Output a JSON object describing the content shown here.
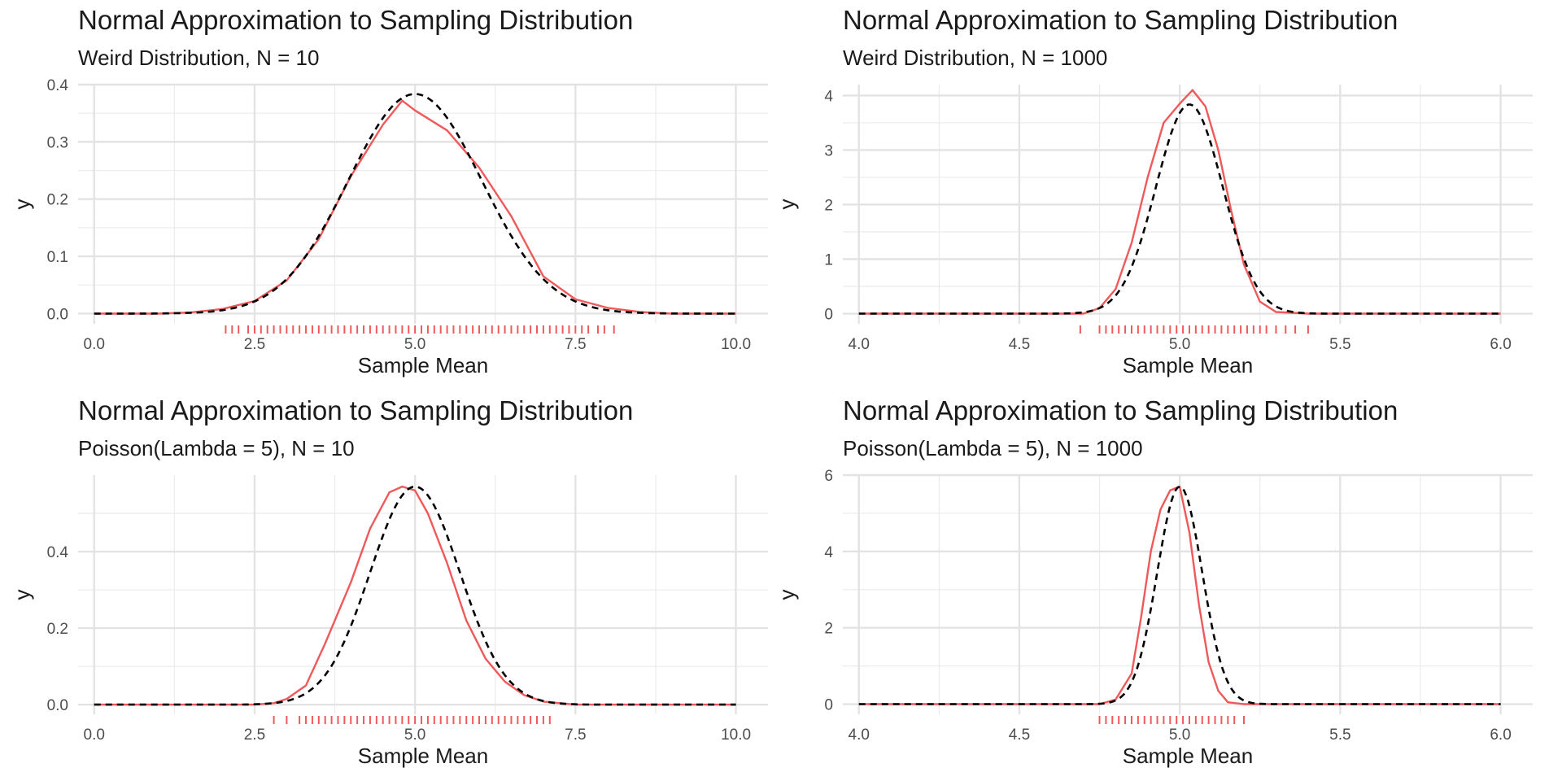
{
  "chart_data": [
    {
      "type": "line",
      "title": "Normal Approximation to Sampling Distribution",
      "subtitle": "Weird Distribution, N = 10",
      "xlabel": "Sample Mean",
      "ylabel": "y",
      "xlim": [
        -0.25,
        10.5
      ],
      "ylim": [
        -0.0178,
        0.4
      ],
      "xticks": [
        "0.0",
        "2.5",
        "5.0",
        "7.5",
        "10.0"
      ],
      "xtick_values": [
        0,
        2.5,
        5,
        7.5,
        10
      ],
      "yticks": [
        "0.0",
        "0.1",
        "0.2",
        "0.3",
        "0.4"
      ],
      "ytick_values": [
        0,
        0.1,
        0.2,
        0.3,
        0.4
      ],
      "grid": true,
      "series": [
        {
          "style": "solid",
          "color": "#f0595a",
          "x": [
            0,
            1,
            1.5,
            2,
            2.5,
            3,
            3.5,
            4,
            4.5,
            4.8,
            5,
            5.5,
            6,
            6.5,
            7,
            7.5,
            8,
            8.5,
            9,
            10
          ],
          "y": [
            0,
            0,
            0.002,
            0.008,
            0.022,
            0.058,
            0.13,
            0.24,
            0.33,
            0.372,
            0.355,
            0.32,
            0.255,
            0.17,
            0.065,
            0.025,
            0.01,
            0.003,
            0,
            0
          ]
        },
        {
          "style": "dashed",
          "color": "#000000",
          "mean": 5.0,
          "sd": 1.04,
          "x": [
            0,
            10
          ]
        }
      ],
      "rug": {
        "color": "#f0595a",
        "x": [
          2.05,
          2.15,
          2.25,
          2.4,
          2.5,
          2.6,
          2.7,
          2.8,
          2.9,
          3.0,
          3.1,
          3.2,
          3.3,
          3.4,
          3.5,
          3.6,
          3.7,
          3.8,
          3.9,
          4.0,
          4.1,
          4.2,
          4.3,
          4.4,
          4.5,
          4.6,
          4.7,
          4.8,
          4.9,
          5.0,
          5.1,
          5.2,
          5.3,
          5.4,
          5.5,
          5.6,
          5.7,
          5.8,
          5.9,
          6.0,
          6.1,
          6.2,
          6.3,
          6.4,
          6.5,
          6.6,
          6.7,
          6.8,
          6.9,
          7.0,
          7.1,
          7.2,
          7.3,
          7.4,
          7.5,
          7.6,
          7.7,
          7.85,
          7.95,
          8.1
        ]
      }
    },
    {
      "type": "line",
      "title": "Normal Approximation to Sampling Distribution",
      "subtitle": "Weird Distribution, N = 1000",
      "xlabel": "Sample Mean",
      "ylabel": "y",
      "xlim": [
        3.95,
        6.1
      ],
      "ylim": [
        -0.186,
        4.2
      ],
      "xticks": [
        "4.0",
        "4.5",
        "5.0",
        "5.5",
        "6.0"
      ],
      "xtick_values": [
        4,
        4.5,
        5,
        5.5,
        6
      ],
      "yticks": [
        "0",
        "1",
        "2",
        "3",
        "4"
      ],
      "ytick_values": [
        0,
        1,
        2,
        3,
        4
      ],
      "grid": true,
      "series": [
        {
          "style": "solid",
          "color": "#f0595a",
          "x": [
            4.0,
            4.7,
            4.75,
            4.8,
            4.85,
            4.9,
            4.95,
            5.0,
            5.04,
            5.08,
            5.12,
            5.16,
            5.2,
            5.25,
            5.3,
            5.4,
            6.0
          ],
          "y": [
            0,
            0,
            0.1,
            0.45,
            1.3,
            2.5,
            3.5,
            3.85,
            4.1,
            3.8,
            3.0,
            1.9,
            0.9,
            0.22,
            0.03,
            0,
            0
          ]
        },
        {
          "style": "dashed",
          "color": "#000000",
          "mean": 5.03,
          "sd": 0.104,
          "x": [
            4,
            6
          ]
        }
      ],
      "rug": {
        "color": "#f0595a",
        "x": [
          4.69,
          4.75,
          4.77,
          4.79,
          4.81,
          4.83,
          4.85,
          4.87,
          4.89,
          4.91,
          4.93,
          4.95,
          4.97,
          4.99,
          5.01,
          5.03,
          5.05,
          5.07,
          5.09,
          5.11,
          5.13,
          5.15,
          5.17,
          5.19,
          5.21,
          5.23,
          5.25,
          5.27,
          5.3,
          5.33,
          5.36,
          5.4
        ]
      }
    },
    {
      "type": "line",
      "title": "Normal Approximation to Sampling Distribution",
      "subtitle": "Poisson(Lambda = 5), N = 10",
      "xlabel": "Sample Mean",
      "ylabel": "y",
      "xlim": [
        -0.25,
        10.5
      ],
      "ylim": [
        -0.0252,
        0.6
      ],
      "xticks": [
        "0.0",
        "2.5",
        "5.0",
        "7.5",
        "10.0"
      ],
      "xtick_values": [
        0,
        2.5,
        5,
        7.5,
        10
      ],
      "yticks": [
        "0.0",
        "0.2",
        "0.4"
      ],
      "ytick_values": [
        0,
        0.2,
        0.4
      ],
      "grid": true,
      "series": [
        {
          "style": "solid",
          "color": "#f0595a",
          "x": [
            0,
            2.5,
            2.8,
            3.0,
            3.3,
            3.6,
            4.0,
            4.3,
            4.6,
            4.8,
            5.0,
            5.2,
            5.5,
            5.8,
            6.1,
            6.4,
            6.7,
            7.0,
            7.5,
            10
          ],
          "y": [
            0,
            0,
            0.004,
            0.015,
            0.05,
            0.16,
            0.32,
            0.46,
            0.555,
            0.57,
            0.56,
            0.5,
            0.37,
            0.22,
            0.12,
            0.06,
            0.025,
            0.008,
            0,
            0
          ]
        },
        {
          "style": "dashed",
          "color": "#000000",
          "mean": 5.0,
          "sd": 0.7,
          "x": [
            0,
            10
          ]
        }
      ],
      "rug": {
        "color": "#f0595a",
        "x": [
          2.8,
          3.0,
          3.2,
          3.3,
          3.4,
          3.5,
          3.6,
          3.7,
          3.8,
          3.9,
          4.0,
          4.1,
          4.2,
          4.3,
          4.4,
          4.5,
          4.6,
          4.7,
          4.8,
          4.9,
          5.0,
          5.1,
          5.2,
          5.3,
          5.4,
          5.5,
          5.6,
          5.7,
          5.8,
          5.9,
          6.0,
          6.1,
          6.2,
          6.3,
          6.4,
          6.5,
          6.6,
          6.7,
          6.8,
          6.9,
          7.0,
          7.1
        ]
      }
    },
    {
      "type": "line",
      "title": "Normal Approximation to Sampling Distribution",
      "subtitle": "Poisson(Lambda = 5), N = 1000",
      "xlabel": "Sample Mean",
      "ylabel": "y",
      "xlim": [
        3.95,
        6.1
      ],
      "ylim": [
        -0.266,
        6.0
      ],
      "xticks": [
        "4.0",
        "4.5",
        "5.0",
        "5.5",
        "6.0"
      ],
      "xtick_values": [
        4,
        4.5,
        5,
        5.5,
        6
      ],
      "yticks": [
        "0",
        "2",
        "4",
        "6"
      ],
      "ytick_values": [
        0,
        2,
        4,
        6
      ],
      "grid": true,
      "series": [
        {
          "style": "solid",
          "color": "#f0595a",
          "x": [
            4.0,
            4.75,
            4.8,
            4.85,
            4.88,
            4.91,
            4.94,
            4.97,
            5.0,
            5.03,
            5.06,
            5.09,
            5.12,
            5.15,
            5.2,
            6.0
          ],
          "y": [
            0,
            0,
            0.12,
            0.8,
            2.3,
            4.0,
            5.1,
            5.6,
            5.7,
            4.5,
            2.6,
            1.1,
            0.35,
            0.05,
            0,
            0
          ]
        },
        {
          "style": "dashed",
          "color": "#000000",
          "mean": 5.0,
          "sd": 0.07,
          "x": [
            4,
            6
          ]
        }
      ],
      "rug": {
        "color": "#f0595a",
        "x": [
          4.75,
          4.77,
          4.79,
          4.81,
          4.83,
          4.85,
          4.87,
          4.89,
          4.91,
          4.93,
          4.95,
          4.97,
          4.99,
          5.01,
          5.03,
          5.05,
          5.07,
          5.09,
          5.11,
          5.13,
          5.15,
          5.17,
          5.2
        ]
      }
    }
  ]
}
